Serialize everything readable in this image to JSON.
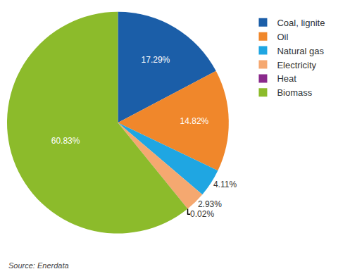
{
  "chart_data": {
    "type": "pie",
    "categories": [
      "Coal, lignite",
      "Oil",
      "Natural gas",
      "Electricity",
      "Heat",
      "Biomass"
    ],
    "values": [
      17.29,
      14.82,
      4.11,
      2.93,
      0.02,
      60.83
    ],
    "value_labels": [
      "17.29%",
      "14.82%",
      "4.11%",
      "2.93%",
      "0.02%",
      "60.83%"
    ],
    "colors": [
      "#1b5ea8",
      "#f0872b",
      "#1fa6e2",
      "#f5a870",
      "#8a2a8c",
      "#8cbb2b"
    ],
    "data_labels": true,
    "legend": "right",
    "annotations": [
      "Source: Enerdata"
    ]
  }
}
